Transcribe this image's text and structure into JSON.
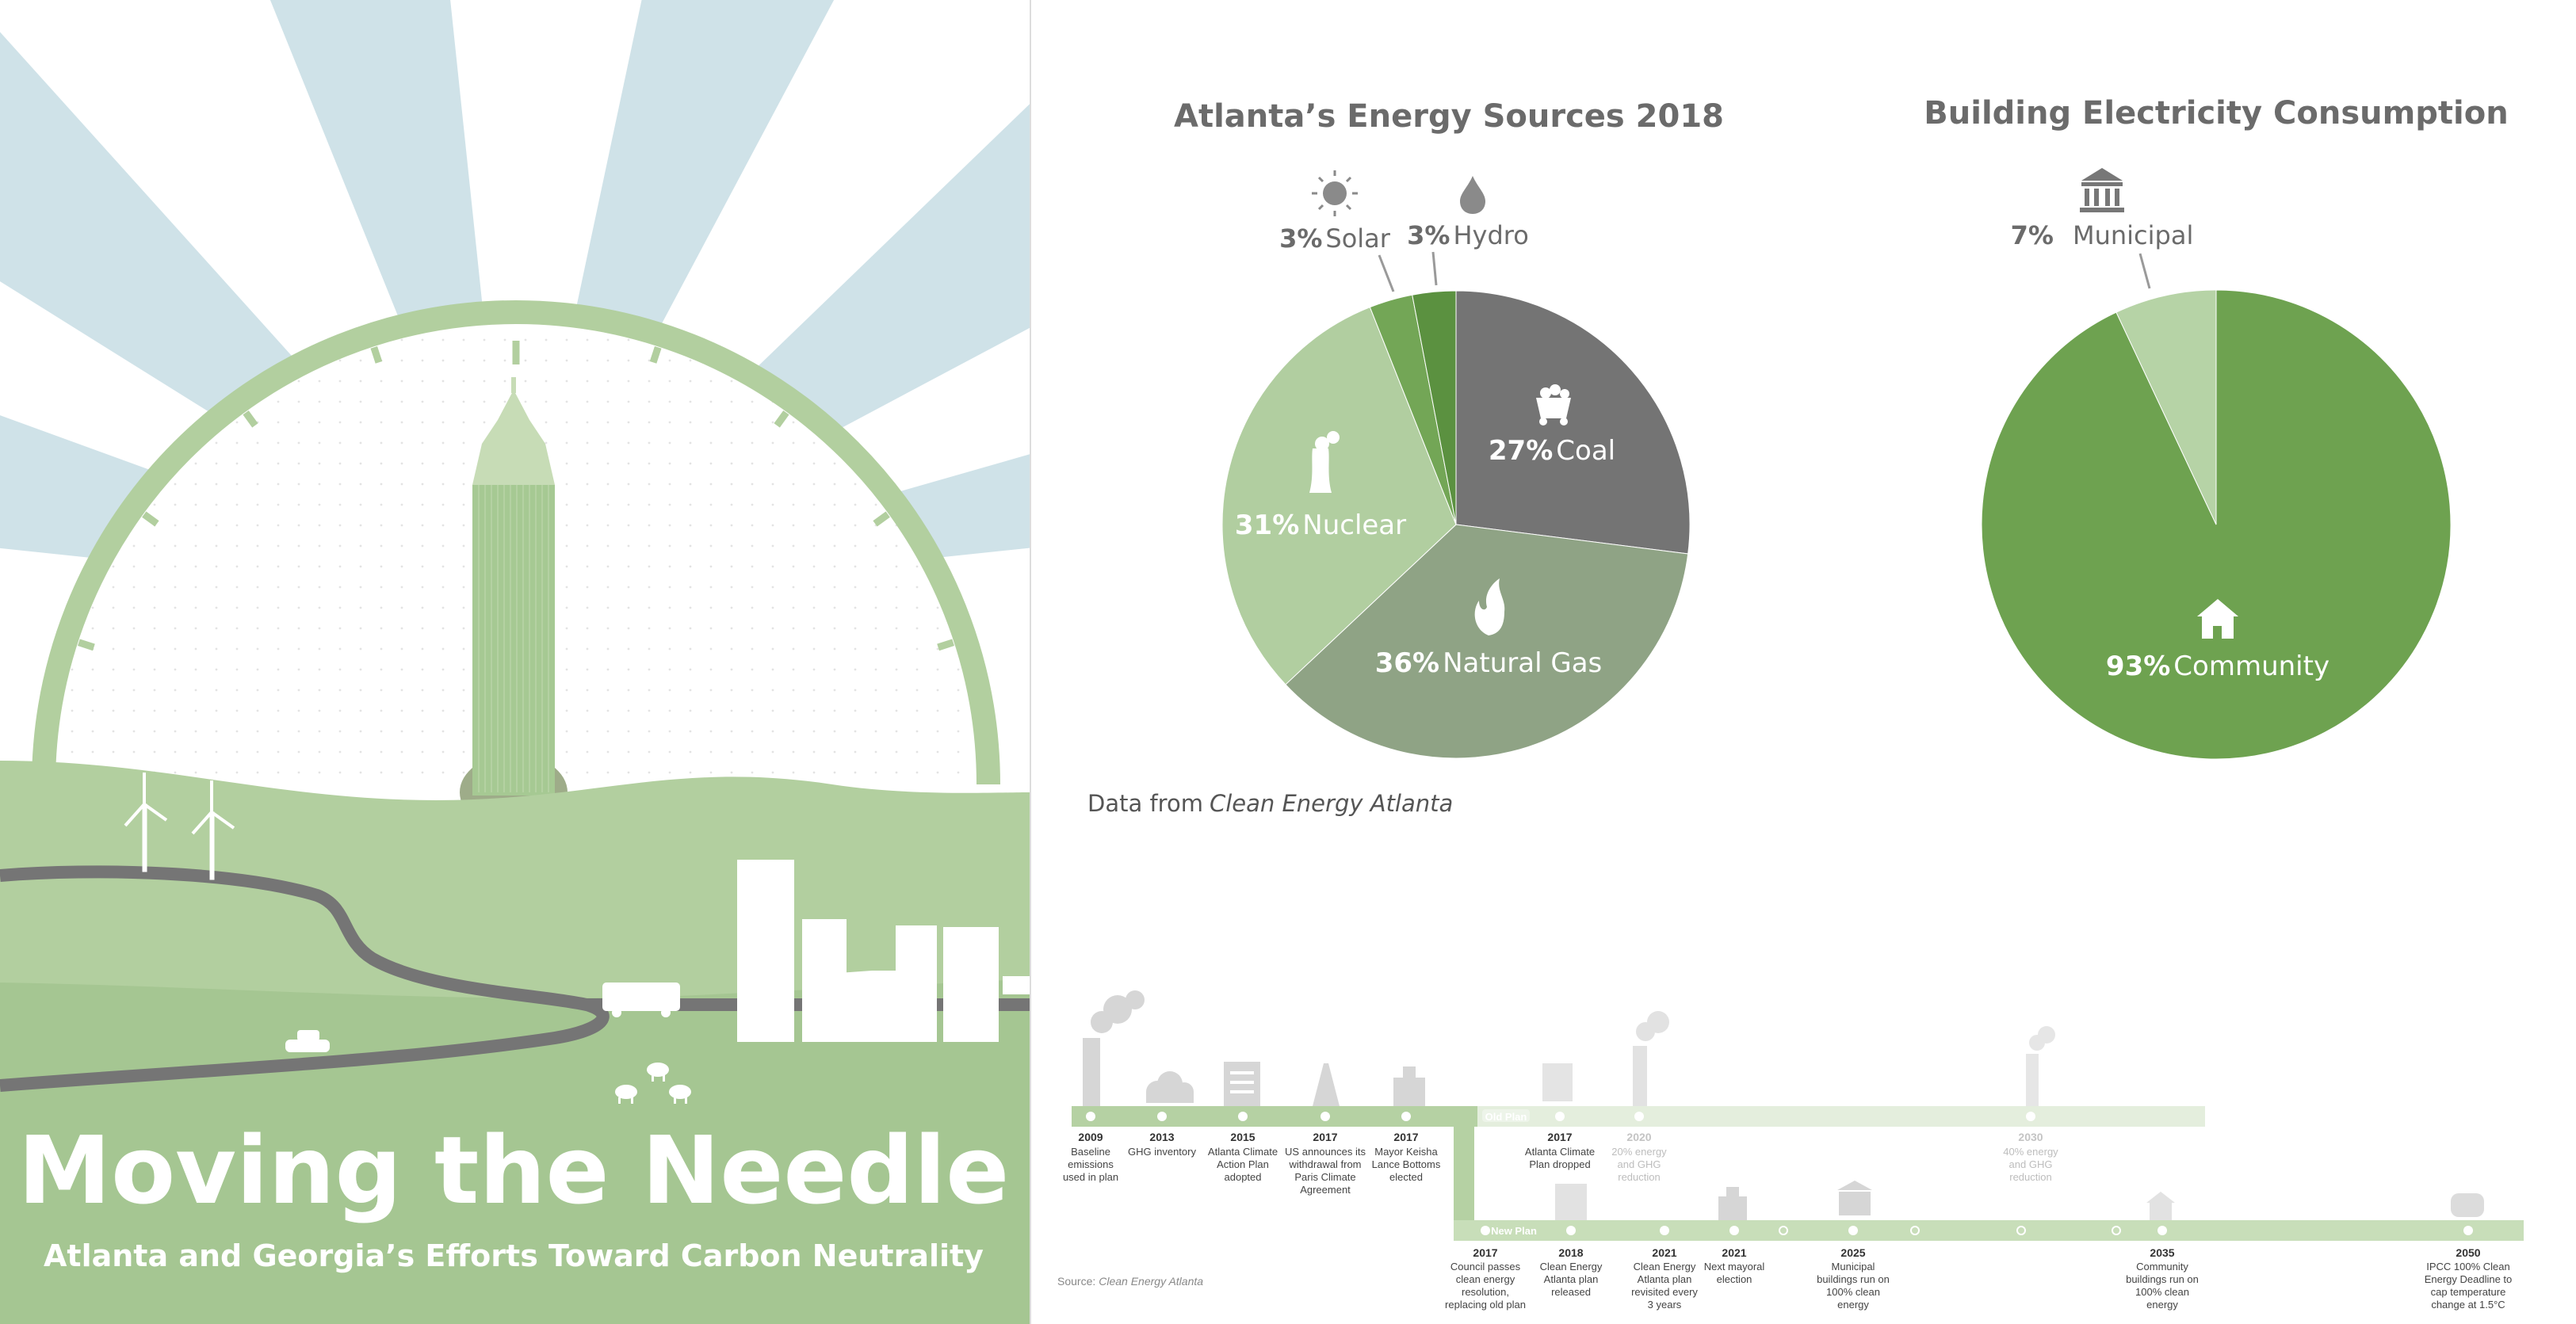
{
  "poster": {
    "title": "Moving the Needle",
    "subtitle": "Atlanta and Georgia’s Efforts Toward Carbon Neutrality"
  },
  "chart_data": [
    {
      "type": "pie",
      "title": "Atlanta’s Energy Sources 2018",
      "slices": [
        {
          "name": "Coal",
          "value": 27,
          "pct_label": "27%",
          "icon": "coal-cart-icon",
          "color": "#747474"
        },
        {
          "name": "Natural Gas",
          "value": 36,
          "pct_label": "36%",
          "icon": "flame-icon",
          "color": "#8fa385"
        },
        {
          "name": "Nuclear",
          "value": 31,
          "pct_label": "31%",
          "icon": "cooling-tower-icon",
          "color": "#b1cea0"
        },
        {
          "name": "Solar",
          "value": 3,
          "pct_label": "3%",
          "icon": "sun-icon",
          "color": "#73a656"
        },
        {
          "name": "Hydro",
          "value": 3,
          "pct_label": "3%",
          "icon": "water-drop-icon",
          "color": "#5b9140"
        }
      ],
      "source_prefix": "Data from",
      "source_name": "Clean Energy Atlanta"
    },
    {
      "type": "pie",
      "title": "Building Electricity Consumption",
      "slices": [
        {
          "name": "Community",
          "value": 93,
          "pct_label": "93%",
          "icon": "house-icon",
          "color": "#6ea250"
        },
        {
          "name": "Municipal",
          "value": 7,
          "pct_label": "7%",
          "icon": "municipal-building-icon",
          "color": "#b6d3a6"
        }
      ]
    }
  ],
  "timeline": {
    "old_plan_label": "Old Plan",
    "new_plan_label": "New Plan",
    "source_prefix": "Source:",
    "source_name": "Clean Energy Atlanta",
    "top_events": [
      {
        "year": "2009",
        "lines": [
          "Baseline",
          "emissions",
          "used in plan"
        ],
        "faded": false
      },
      {
        "year": "2013",
        "lines": [
          "GHG inventory"
        ],
        "faded": false
      },
      {
        "year": "2015",
        "lines": [
          "Atlanta Climate",
          "Action Plan",
          "adopted"
        ],
        "faded": false
      },
      {
        "year": "2017",
        "lines": [
          "US announces its",
          "withdrawal from",
          "Paris Climate",
          "Agreement"
        ],
        "faded": false
      },
      {
        "year": "2017",
        "lines": [
          "Mayor Keisha",
          "Lance Bottoms",
          "elected"
        ],
        "faded": false
      },
      {
        "year": "2017",
        "lines": [
          "Atlanta Climate",
          "Plan dropped"
        ],
        "faded": false
      },
      {
        "year": "2020",
        "lines": [
          "20% energy",
          "and GHG",
          "reduction"
        ],
        "faded": true
      },
      {
        "year": "2030",
        "lines": [
          "40% energy",
          "and GHG",
          "reduction"
        ],
        "faded": true
      }
    ],
    "bottom_events": [
      {
        "year": "2017",
        "lines": [
          "Council passes",
          "clean energy",
          "resolution,",
          "replacing old plan"
        ]
      },
      {
        "year": "2018",
        "lines": [
          "Clean Energy",
          "Atlanta plan",
          "released"
        ]
      },
      {
        "year": "2021",
        "lines": [
          "Clean Energy",
          "Atlanta plan",
          "revisited every",
          "3 years"
        ]
      },
      {
        "year": "2021",
        "lines": [
          "Next mayoral",
          "election"
        ]
      },
      {
        "year": "2025",
        "lines": [
          "Municipal",
          "buildings run on",
          "100% clean",
          "energy"
        ]
      },
      {
        "year": "2035",
        "lines": [
          "Community",
          "buildings run on",
          "100% clean",
          "energy"
        ]
      },
      {
        "year": "2050",
        "lines": [
          "IPCC 100% Clean",
          "Energy Deadline to",
          "cap temperature",
          "change at 1.5°C"
        ]
      }
    ]
  },
  "colors": {
    "green_light": "#b1cea0",
    "green_mid": "#6ea250",
    "grey_dark": "#747474",
    "sky": "#cfe2e8"
  }
}
